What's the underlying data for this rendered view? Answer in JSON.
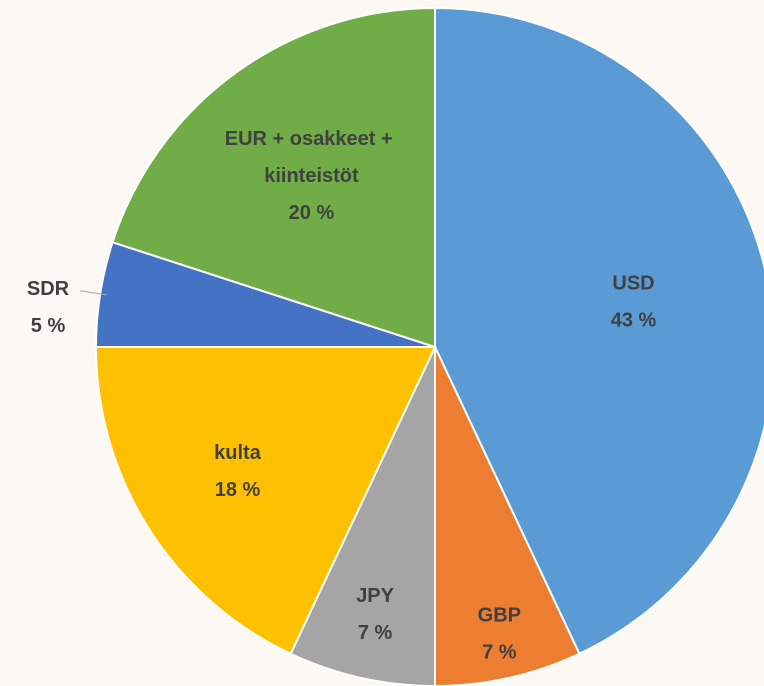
{
  "chart_data": {
    "type": "pie",
    "categories": [
      "USD",
      "GBP",
      "JPY",
      "kulta",
      "SDR",
      "EUR + osakkeet + kiinteistöt"
    ],
    "values": [
      43,
      7,
      7,
      18,
      5,
      20
    ],
    "value_labels": [
      "43 %",
      "7 %",
      "7 %",
      "18 %",
      "5 %",
      "20 %"
    ],
    "colors": [
      "#5b9bd5",
      "#ed7d31",
      "#a5a5a5",
      "#ffc000",
      "#4472c4",
      "#70ad47"
    ]
  }
}
